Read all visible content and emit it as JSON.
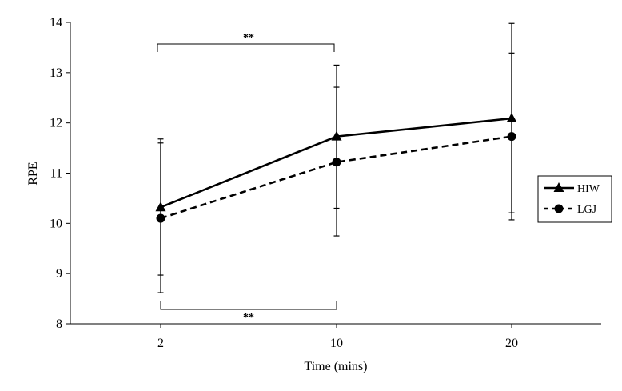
{
  "chart_data": {
    "type": "line",
    "title": "",
    "xlabel": "Time (mins)",
    "ylabel": "RPE",
    "categories": [
      "2",
      "10",
      "20"
    ],
    "ylim": [
      8,
      14
    ],
    "yticks": [
      8,
      9,
      10,
      11,
      12,
      13,
      14
    ],
    "grid": false,
    "legend_position": "right",
    "series": [
      {
        "name": "HIW",
        "line_style": "solid",
        "marker": "triangle",
        "values": [
          10.32,
          11.73,
          12.09
        ],
        "error_upper": [
          11.6,
          13.15,
          13.98
        ],
        "error_lower": [
          8.97,
          10.3,
          10.21
        ]
      },
      {
        "name": "LGJ",
        "line_style": "dashed",
        "marker": "circle",
        "values": [
          10.1,
          11.22,
          11.73
        ],
        "error_upper": [
          11.68,
          12.71,
          13.39
        ],
        "error_lower": [
          8.62,
          9.75,
          10.07
        ]
      }
    ],
    "annotations": [
      {
        "text": "**",
        "from": "2",
        "to": "10",
        "placement": "above"
      },
      {
        "text": "**",
        "from": "2",
        "to": "10",
        "placement": "below"
      }
    ],
    "colors": {
      "line": "#000000",
      "background": "#ffffff"
    }
  }
}
